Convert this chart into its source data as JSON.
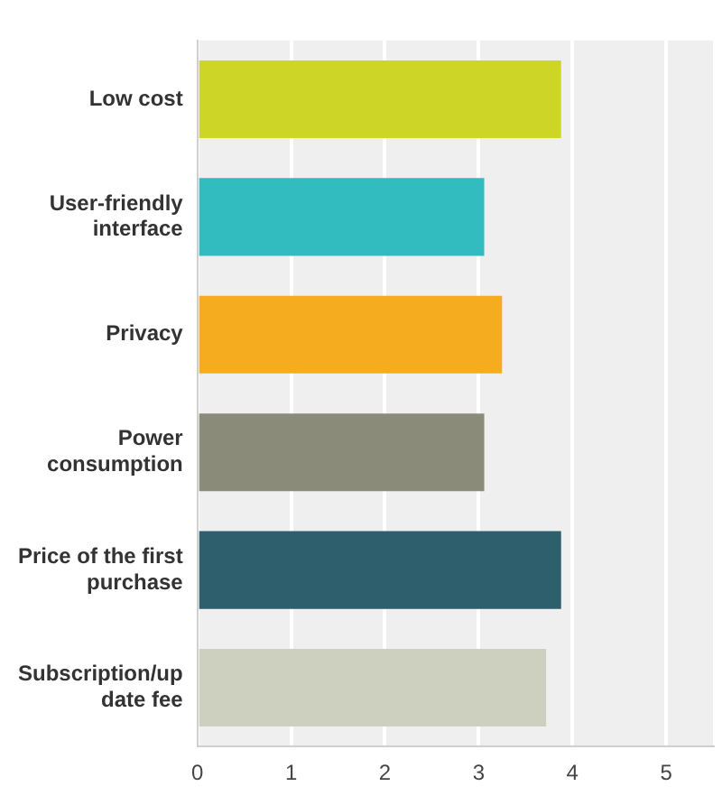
{
  "chart_data": {
    "type": "bar",
    "orientation": "horizontal",
    "categories": [
      "Low cost",
      "User-friendly interface",
      "Privacy",
      "Power consumption",
      "Price of the first purchase",
      "Subscription/update fee"
    ],
    "values": [
      3.88,
      3.06,
      3.25,
      3.06,
      3.88,
      3.72
    ],
    "colors": [
      "#cdd626",
      "#33bcbf",
      "#f5ac1f",
      "#8a8b79",
      "#2e5f6c",
      "#cdcfbf"
    ],
    "xlim": [
      0,
      5.5
    ],
    "xticks": [
      0,
      1,
      2,
      3,
      4,
      5
    ],
    "grid": "x",
    "legend": false
  }
}
